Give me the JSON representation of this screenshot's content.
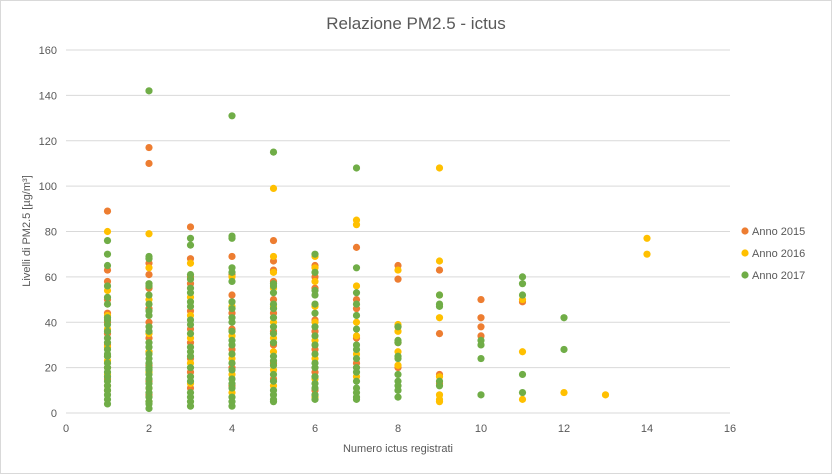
{
  "chart_data": {
    "type": "scatter",
    "title": "Relazione PM2.5 - ictus",
    "xlabel": "Numero  ictus registrati",
    "ylabel": "Livelli di PM2.5 [µg/m³]",
    "xlim": [
      0,
      16
    ],
    "ylim": [
      0,
      160
    ],
    "xticks": [
      0,
      2,
      4,
      6,
      8,
      10,
      12,
      14,
      16
    ],
    "yticks": [
      0,
      20,
      40,
      60,
      80,
      100,
      120,
      140,
      160
    ],
    "grid": "horizontal",
    "legend_position": "right",
    "series": [
      {
        "name": "Anno 2015",
        "color": "#ED7D31",
        "points": [
          [
            1,
            89
          ],
          [
            1,
            63
          ],
          [
            1,
            58
          ],
          [
            1,
            50
          ],
          [
            1,
            44
          ],
          [
            1,
            40
          ],
          [
            1,
            35
          ],
          [
            1,
            30
          ],
          [
            1,
            25
          ],
          [
            1,
            20
          ],
          [
            1,
            15
          ],
          [
            1,
            10
          ],
          [
            2,
            117
          ],
          [
            2,
            110
          ],
          [
            2,
            66
          ],
          [
            2,
            61
          ],
          [
            2,
            55
          ],
          [
            2,
            46
          ],
          [
            2,
            40
          ],
          [
            2,
            33
          ],
          [
            2,
            27
          ],
          [
            2,
            21
          ],
          [
            2,
            14
          ],
          [
            2,
            8
          ],
          [
            3,
            82
          ],
          [
            3,
            68
          ],
          [
            3,
            60
          ],
          [
            3,
            57
          ],
          [
            3,
            45
          ],
          [
            3,
            37
          ],
          [
            3,
            31
          ],
          [
            3,
            24
          ],
          [
            3,
            18
          ],
          [
            3,
            11
          ],
          [
            4,
            69
          ],
          [
            4,
            61
          ],
          [
            4,
            52
          ],
          [
            4,
            44
          ],
          [
            4,
            37
          ],
          [
            4,
            28
          ],
          [
            4,
            20
          ],
          [
            4,
            12
          ],
          [
            5,
            76
          ],
          [
            5,
            67
          ],
          [
            5,
            63
          ],
          [
            5,
            58
          ],
          [
            5,
            50
          ],
          [
            5,
            44
          ],
          [
            5,
            36
          ],
          [
            5,
            30
          ],
          [
            5,
            22
          ],
          [
            5,
            15
          ],
          [
            6,
            65
          ],
          [
            6,
            60
          ],
          [
            6,
            55
          ],
          [
            6,
            41
          ],
          [
            6,
            36
          ],
          [
            6,
            28
          ],
          [
            6,
            18
          ],
          [
            6,
            10
          ],
          [
            7,
            73
          ],
          [
            7,
            50
          ],
          [
            7,
            46
          ],
          [
            7,
            33
          ],
          [
            7,
            22
          ],
          [
            8,
            65
          ],
          [
            8,
            59
          ],
          [
            8,
            38
          ],
          [
            8,
            31
          ],
          [
            8,
            20
          ],
          [
            9,
            63
          ],
          [
            9,
            35
          ],
          [
            9,
            17
          ],
          [
            9,
            13
          ],
          [
            10,
            50
          ],
          [
            10,
            42
          ],
          [
            10,
            38
          ],
          [
            10,
            34
          ],
          [
            11,
            49
          ]
        ]
      },
      {
        "name": "Anno 2016",
        "color": "#FFC000",
        "points": [
          [
            1,
            80
          ],
          [
            1,
            54
          ],
          [
            1,
            43
          ],
          [
            1,
            37
          ],
          [
            1,
            29
          ],
          [
            1,
            23
          ],
          [
            1,
            17
          ],
          [
            1,
            12
          ],
          [
            2,
            79
          ],
          [
            2,
            64
          ],
          [
            2,
            50
          ],
          [
            2,
            35
          ],
          [
            2,
            27
          ],
          [
            2,
            18
          ],
          [
            2,
            11
          ],
          [
            2,
            5
          ],
          [
            3,
            66
          ],
          [
            3,
            51
          ],
          [
            3,
            43
          ],
          [
            3,
            33
          ],
          [
            3,
            22
          ],
          [
            3,
            13
          ],
          [
            4,
            60
          ],
          [
            4,
            47
          ],
          [
            4,
            34
          ],
          [
            4,
            24
          ],
          [
            4,
            17
          ],
          [
            4,
            9
          ],
          [
            5,
            99
          ],
          [
            5,
            69
          ],
          [
            5,
            62
          ],
          [
            5,
            55
          ],
          [
            5,
            47
          ],
          [
            5,
            40
          ],
          [
            5,
            33
          ],
          [
            5,
            27
          ],
          [
            5,
            19
          ],
          [
            5,
            12
          ],
          [
            6,
            69
          ],
          [
            6,
            64
          ],
          [
            6,
            58
          ],
          [
            6,
            47
          ],
          [
            6,
            40
          ],
          [
            6,
            32
          ],
          [
            6,
            24
          ],
          [
            6,
            15
          ],
          [
            6,
            7
          ],
          [
            7,
            85
          ],
          [
            7,
            83
          ],
          [
            7,
            56
          ],
          [
            7,
            40
          ],
          [
            7,
            34
          ],
          [
            7,
            26
          ],
          [
            7,
            16
          ],
          [
            8,
            63
          ],
          [
            8,
            39
          ],
          [
            8,
            36
          ],
          [
            8,
            27
          ],
          [
            8,
            21
          ],
          [
            9,
            108
          ],
          [
            9,
            67
          ],
          [
            9,
            52
          ],
          [
            9,
            42
          ],
          [
            9,
            16
          ],
          [
            9,
            8
          ],
          [
            9,
            6
          ],
          [
            9,
            5
          ],
          [
            11,
            50
          ],
          [
            11,
            27
          ],
          [
            11,
            6
          ],
          [
            12,
            9
          ],
          [
            13,
            8
          ],
          [
            14,
            77
          ],
          [
            14,
            70
          ]
        ]
      },
      {
        "name": "Anno 2017",
        "color": "#70AD47",
        "points": [
          [
            1,
            76
          ],
          [
            1,
            70
          ],
          [
            1,
            65
          ],
          [
            1,
            56
          ],
          [
            1,
            51
          ],
          [
            1,
            48
          ],
          [
            1,
            42
          ],
          [
            1,
            41
          ],
          [
            1,
            39
          ],
          [
            1,
            36
          ],
          [
            1,
            33
          ],
          [
            1,
            31
          ],
          [
            1,
            28
          ],
          [
            1,
            26
          ],
          [
            1,
            25
          ],
          [
            1,
            22
          ],
          [
            1,
            20
          ],
          [
            1,
            18
          ],
          [
            1,
            16
          ],
          [
            1,
            14
          ],
          [
            1,
            12
          ],
          [
            1,
            10
          ],
          [
            1,
            8
          ],
          [
            1,
            6
          ],
          [
            1,
            4
          ],
          [
            2,
            142
          ],
          [
            2,
            69
          ],
          [
            2,
            68
          ],
          [
            2,
            57
          ],
          [
            2,
            56
          ],
          [
            2,
            52
          ],
          [
            2,
            48
          ],
          [
            2,
            45
          ],
          [
            2,
            43
          ],
          [
            2,
            38
          ],
          [
            2,
            36
          ],
          [
            2,
            31
          ],
          [
            2,
            29
          ],
          [
            2,
            26
          ],
          [
            2,
            24
          ],
          [
            2,
            22
          ],
          [
            2,
            20
          ],
          [
            2,
            19
          ],
          [
            2,
            17
          ],
          [
            2,
            15
          ],
          [
            2,
            13
          ],
          [
            2,
            11
          ],
          [
            2,
            9
          ],
          [
            2,
            7
          ],
          [
            2,
            5
          ],
          [
            2,
            4
          ],
          [
            2,
            2
          ],
          [
            3,
            77
          ],
          [
            3,
            74
          ],
          [
            3,
            61
          ],
          [
            3,
            59
          ],
          [
            3,
            55
          ],
          [
            3,
            53
          ],
          [
            3,
            49
          ],
          [
            3,
            47
          ],
          [
            3,
            41
          ],
          [
            3,
            39
          ],
          [
            3,
            35
          ],
          [
            3,
            29
          ],
          [
            3,
            27
          ],
          [
            3,
            25
          ],
          [
            3,
            20
          ],
          [
            3,
            16
          ],
          [
            3,
            14
          ],
          [
            3,
            9
          ],
          [
            3,
            7
          ],
          [
            3,
            5
          ],
          [
            3,
            3
          ],
          [
            4,
            131
          ],
          [
            4,
            78
          ],
          [
            4,
            77
          ],
          [
            4,
            64
          ],
          [
            4,
            62
          ],
          [
            4,
            58
          ],
          [
            4,
            49
          ],
          [
            4,
            46
          ],
          [
            4,
            42
          ],
          [
            4,
            40
          ],
          [
            4,
            36
          ],
          [
            4,
            32
          ],
          [
            4,
            30
          ],
          [
            4,
            26
          ],
          [
            4,
            22
          ],
          [
            4,
            19
          ],
          [
            4,
            15
          ],
          [
            4,
            13
          ],
          [
            4,
            11
          ],
          [
            4,
            7
          ],
          [
            4,
            5
          ],
          [
            4,
            3
          ],
          [
            5,
            115
          ],
          [
            5,
            57
          ],
          [
            5,
            56
          ],
          [
            5,
            53
          ],
          [
            5,
            48
          ],
          [
            5,
            46
          ],
          [
            5,
            42
          ],
          [
            5,
            38
          ],
          [
            5,
            35
          ],
          [
            5,
            31
          ],
          [
            5,
            25
          ],
          [
            5,
            23
          ],
          [
            5,
            21
          ],
          [
            5,
            17
          ],
          [
            5,
            14
          ],
          [
            5,
            10
          ],
          [
            5,
            8
          ],
          [
            5,
            6
          ],
          [
            5,
            5
          ],
          [
            6,
            70
          ],
          [
            6,
            62
          ],
          [
            6,
            54
          ],
          [
            6,
            52
          ],
          [
            6,
            48
          ],
          [
            6,
            44
          ],
          [
            6,
            38
          ],
          [
            6,
            34
          ],
          [
            6,
            30
          ],
          [
            6,
            26
          ],
          [
            6,
            22
          ],
          [
            6,
            20
          ],
          [
            6,
            16
          ],
          [
            6,
            13
          ],
          [
            6,
            11
          ],
          [
            6,
            8
          ],
          [
            6,
            6
          ],
          [
            7,
            108
          ],
          [
            7,
            64
          ],
          [
            7,
            53
          ],
          [
            7,
            48
          ],
          [
            7,
            43
          ],
          [
            7,
            37
          ],
          [
            7,
            30
          ],
          [
            7,
            28
          ],
          [
            7,
            24
          ],
          [
            7,
            20
          ],
          [
            7,
            18
          ],
          [
            7,
            14
          ],
          [
            7,
            11
          ],
          [
            7,
            9
          ],
          [
            7,
            7
          ],
          [
            7,
            6
          ],
          [
            8,
            38
          ],
          [
            8,
            32
          ],
          [
            8,
            31
          ],
          [
            8,
            25
          ],
          [
            8,
            24
          ],
          [
            8,
            17
          ],
          [
            8,
            14
          ],
          [
            8,
            12
          ],
          [
            8,
            10
          ],
          [
            8,
            7
          ],
          [
            9,
            52
          ],
          [
            9,
            48
          ],
          [
            9,
            47
          ],
          [
            9,
            14
          ],
          [
            9,
            12
          ],
          [
            10,
            32
          ],
          [
            10,
            30
          ],
          [
            10,
            24
          ],
          [
            10,
            8
          ],
          [
            11,
            60
          ],
          [
            11,
            57
          ],
          [
            11,
            52
          ],
          [
            11,
            17
          ],
          [
            11,
            9
          ],
          [
            12,
            42
          ],
          [
            12,
            28
          ]
        ]
      }
    ]
  }
}
